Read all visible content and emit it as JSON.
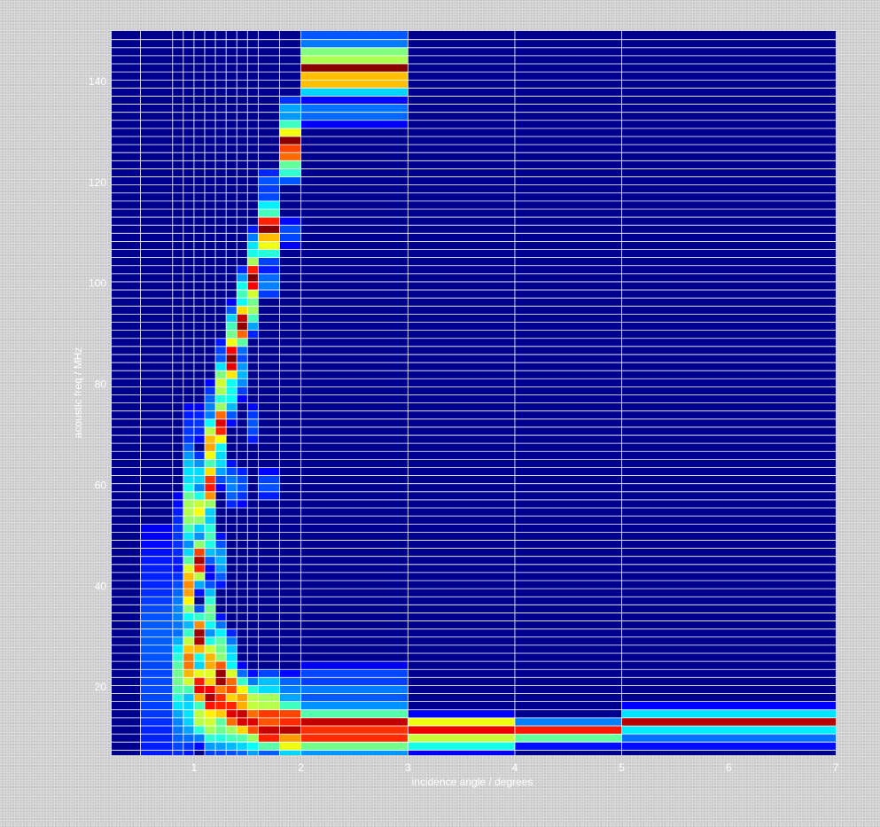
{
  "chart_data": {
    "type": "heatmap",
    "title": "",
    "xlabel": "incidence angle / degrees",
    "ylabel": "acoustic freq / MHz",
    "xlim": [
      0.23,
      7.0
    ],
    "ylim": [
      6.5,
      150.0
    ],
    "x_ticks": [
      1,
      2,
      3,
      4,
      5,
      6,
      7
    ],
    "y_ticks": [
      20,
      40,
      60,
      80,
      100,
      120,
      140
    ],
    "grid": true,
    "colormap": "jet",
    "colormap_stops": [
      "#00008f",
      "#0000ff",
      "#00ffff",
      "#ffff00",
      "#ff0000",
      "#800000"
    ],
    "background_color": "#00008f",
    "grid_color": "#ffffff",
    "row_height_mhz": 1.6,
    "x_edges": [
      0.23,
      0.5,
      0.8,
      0.9,
      1.0,
      1.1,
      1.2,
      1.3,
      1.4,
      1.5,
      1.6,
      1.8,
      2.0,
      3.0,
      4.0,
      5.0,
      7.0
    ],
    "y_grid_edges": [
      7.5,
      9.1,
      10.7,
      12.3,
      13.9,
      15.5,
      17.1,
      18.7,
      20.3,
      21.9,
      23.5,
      25.1,
      26.7,
      28.3,
      29.9,
      31.5,
      33.1,
      34.7,
      36.3,
      37.9,
      39.5,
      41.1,
      42.7,
      44.3,
      45.9,
      47.5,
      49.1,
      50.7,
      52.3,
      53.9,
      55.5,
      57.1,
      58.7,
      60.3,
      61.9,
      63.5,
      65.1,
      66.7,
      68.3,
      69.9,
      71.5,
      73.1,
      74.7,
      76.3,
      77.9,
      79.5,
      81.1,
      82.7,
      84.3,
      85.9,
      87.5,
      89.1,
      90.7,
      92.3,
      93.9,
      95.5,
      97.1,
      98.7,
      100.3,
      101.9,
      103.5,
      105.1,
      106.7,
      108.3,
      109.9,
      111.5,
      113.1,
      114.7,
      116.3,
      117.9,
      119.5,
      121.1,
      122.7,
      124.3,
      125.9,
      127.5,
      129.1,
      130.7,
      132.3,
      133.9,
      135.5,
      137.1,
      138.7,
      140.3,
      141.9,
      143.5,
      145.1,
      146.7,
      148.3
    ],
    "ridges": [
      {
        "x_range": [
          0.5,
          0.8
        ],
        "points": [
          [
            30,
            0.16
          ],
          [
            20,
            0.14
          ],
          [
            40,
            0.1
          ],
          [
            12,
            0.1
          ]
        ],
        "width": 14
      },
      {
        "x_range": [
          0.8,
          0.9
        ],
        "points": [
          [
            22,
            0.45
          ],
          [
            35,
            0.2
          ],
          [
            50,
            0.12
          ],
          [
            14,
            0.2
          ]
        ],
        "width": 9
      },
      {
        "x_range": [
          0.9,
          1.0
        ],
        "points": [
          [
            15,
            0.3
          ],
          [
            25,
            0.75
          ],
          [
            40,
            0.72
          ],
          [
            55,
            0.52
          ],
          [
            62,
            0.3
          ],
          [
            70,
            0.12
          ]
        ],
        "width": 7
      },
      {
        "x_range": [
          1.0,
          1.1
        ],
        "points": [
          [
            14,
            0.55
          ],
          [
            20,
            0.9
          ],
          [
            30,
            1.0
          ],
          [
            45,
            0.95
          ],
          [
            55,
            0.6
          ],
          [
            62,
            0.3
          ],
          [
            72,
            0.12
          ]
        ],
        "width": 4
      },
      {
        "x_range": [
          1.1,
          1.2
        ],
        "points": [
          [
            13,
            0.55
          ],
          [
            18,
            0.95
          ],
          [
            25,
            0.7
          ],
          [
            35,
            0.45
          ],
          [
            50,
            0.4
          ],
          [
            60,
            0.85
          ],
          [
            68,
            0.7
          ],
          [
            75,
            0.2
          ]
        ],
        "width": 5
      },
      {
        "x_range": [
          1.2,
          1.3
        ],
        "points": [
          [
            12,
            0.45
          ],
          [
            17,
            0.85
          ],
          [
            22,
            1.0
          ],
          [
            28,
            0.45
          ],
          [
            45,
            0.25
          ],
          [
            65,
            0.3
          ],
          [
            72,
            0.9
          ],
          [
            80,
            0.55
          ],
          [
            85,
            0.15
          ]
        ],
        "width": 4.5
      },
      {
        "x_range": [
          1.3,
          1.4
        ],
        "points": [
          [
            12,
            0.5
          ],
          [
            15,
            0.9
          ],
          [
            20,
            0.8
          ],
          [
            26,
            0.3
          ],
          [
            60,
            0.2
          ],
          [
            78,
            0.35
          ],
          [
            85,
            1.0
          ],
          [
            90,
            0.45
          ]
        ],
        "width": 4.5
      },
      {
        "x_range": [
          1.4,
          1.5
        ],
        "points": [
          [
            11,
            0.45
          ],
          [
            14,
            0.95
          ],
          [
            18,
            0.7
          ],
          [
            60,
            0.15
          ],
          [
            82,
            0.25
          ],
          [
            92,
            1.0
          ],
          [
            98,
            0.4
          ]
        ],
        "width": 4
      },
      {
        "x_range": [
          1.5,
          1.6
        ],
        "points": [
          [
            10,
            0.4
          ],
          [
            13,
            0.9
          ],
          [
            17,
            0.55
          ],
          [
            72,
            0.15
          ],
          [
            95,
            0.5
          ],
          [
            101,
            1.0
          ],
          [
            106,
            0.35
          ]
        ],
        "width": 4
      },
      {
        "x_range": [
          1.6,
          1.8
        ],
        "points": [
          [
            11,
            0.95
          ],
          [
            14,
            0.85
          ],
          [
            17,
            0.55
          ],
          [
            20,
            0.3
          ],
          [
            60,
            0.15
          ],
          [
            100,
            0.2
          ],
          [
            108,
            0.6
          ],
          [
            111,
            1.0
          ],
          [
            114,
            0.4
          ],
          [
            120,
            0.15
          ]
        ],
        "width": 3
      },
      {
        "x_range": [
          1.8,
          2.0
        ],
        "points": [
          [
            9.5,
            0.72
          ],
          [
            12,
            0.98
          ],
          [
            14,
            0.85
          ],
          [
            16,
            0.4
          ],
          [
            20,
            0.2
          ],
          [
            110,
            0.15
          ],
          [
            123,
            0.45
          ],
          [
            126,
            0.85
          ],
          [
            128,
            1.0
          ],
          [
            130,
            0.55
          ],
          [
            134,
            0.25
          ]
        ],
        "width": 2.6
      },
      {
        "x_range": [
          2.0,
          3.0
        ],
        "points": [
          [
            8.5,
            0.35
          ],
          [
            10,
            0.82
          ],
          [
            12.5,
            1.0
          ],
          [
            14.5,
            0.42
          ],
          [
            19,
            0.2
          ],
          [
            22,
            0.15
          ],
          [
            134,
            0.2
          ],
          [
            140,
            0.7
          ],
          [
            142.5,
            1.0
          ],
          [
            145,
            0.55
          ],
          [
            148,
            0.2
          ]
        ],
        "width": 2.2
      },
      {
        "x_range": [
          3.0,
          4.0
        ],
        "points": [
          [
            9,
            0.45
          ],
          [
            11,
            1.0
          ],
          [
            12.5,
            0.7
          ]
        ],
        "width": 1.4
      },
      {
        "x_range": [
          4.0,
          5.0
        ],
        "points": [
          [
            11,
            1.0
          ],
          [
            9.5,
            0.2
          ],
          [
            12.5,
            0.25
          ]
        ],
        "width": 1.2
      },
      {
        "x_range": [
          5.0,
          7.0
        ],
        "points": [
          [
            9.5,
            0.2
          ],
          [
            11,
            0.22
          ],
          [
            12.8,
            1.0
          ],
          [
            14.8,
            0.3
          ]
        ],
        "width": 1.2
      }
    ]
  }
}
